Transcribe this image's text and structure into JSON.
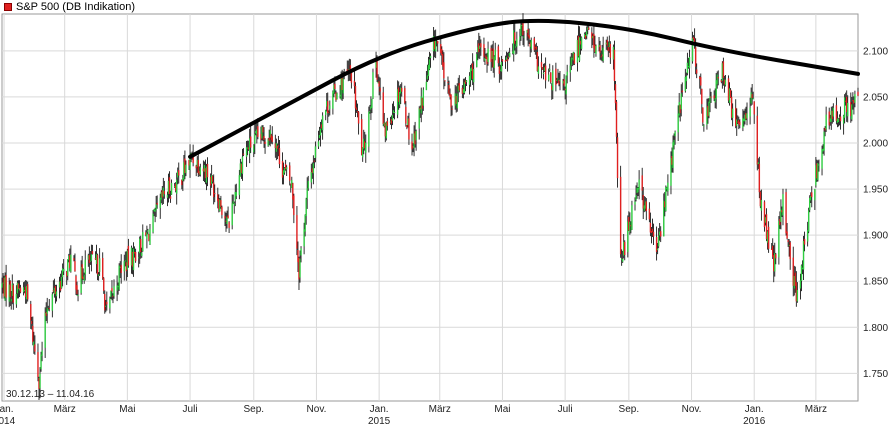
{
  "chart_data": {
    "type": "candlestick",
    "title": "S&P 500 (DB Indikation)",
    "legend_color": "#e02020",
    "range_label": "30.12.13 – 11.04.16",
    "colors": {
      "up": "#2ecc40",
      "down": "#e02020",
      "wick": "#1a1a1a",
      "grid": "#d9d9d9",
      "trend": "#000000"
    },
    "y_ticks": [
      "1.750",
      "1.800",
      "1.850",
      "1.900",
      "1.950",
      "2.000",
      "2.050",
      "2.100"
    ],
    "ylim": [
      1720,
      2140
    ],
    "x_ticks": [
      {
        "date": "2014-01-01",
        "label": "Jan.",
        "year": "2014"
      },
      {
        "date": "2014-03-01",
        "label": "März",
        "year": ""
      },
      {
        "date": "2014-05-01",
        "label": "Mai",
        "year": ""
      },
      {
        "date": "2014-07-01",
        "label": "Juli",
        "year": ""
      },
      {
        "date": "2014-09-01",
        "label": "Sep.",
        "year": ""
      },
      {
        "date": "2014-11-01",
        "label": "Nov.",
        "year": ""
      },
      {
        "date": "2015-01-01",
        "label": "Jan.",
        "year": "2015"
      },
      {
        "date": "2015-03-01",
        "label": "März",
        "year": ""
      },
      {
        "date": "2015-05-01",
        "label": "Mai",
        "year": ""
      },
      {
        "date": "2015-07-01",
        "label": "Juli",
        "year": ""
      },
      {
        "date": "2015-09-01",
        "label": "Sep.",
        "year": ""
      },
      {
        "date": "2015-11-01",
        "label": "Nov.",
        "year": ""
      },
      {
        "date": "2016-01-01",
        "label": "Jan.",
        "year": "2016"
      },
      {
        "date": "2016-03-01",
        "label": "März",
        "year": ""
      }
    ],
    "xlim": [
      "2013-12-30",
      "2016-04-11"
    ],
    "close_series": [
      [
        "2013-12-30",
        1845
      ],
      [
        "2014-01-10",
        1838
      ],
      [
        "2014-01-22",
        1842
      ],
      [
        "2014-02-04",
        1745
      ],
      [
        "2014-02-12",
        1825
      ],
      [
        "2014-02-26",
        1852
      ],
      [
        "2014-03-07",
        1875
      ],
      [
        "2014-03-14",
        1842
      ],
      [
        "2014-03-21",
        1870
      ],
      [
        "2014-04-04",
        1868
      ],
      [
        "2014-04-11",
        1815
      ],
      [
        "2014-04-25",
        1865
      ],
      [
        "2014-05-09",
        1880
      ],
      [
        "2014-05-23",
        1905
      ],
      [
        "2014-06-06",
        1945
      ],
      [
        "2014-06-20",
        1960
      ],
      [
        "2014-07-03",
        1985
      ],
      [
        "2014-07-17",
        1970
      ],
      [
        "2014-07-31",
        1935
      ],
      [
        "2014-08-07",
        1910
      ],
      [
        "2014-08-22",
        1990
      ],
      [
        "2014-09-05",
        2005
      ],
      [
        "2014-09-19",
        2012
      ],
      [
        "2014-09-30",
        1970
      ],
      [
        "2014-10-08",
        1955
      ],
      [
        "2014-10-15",
        1862
      ],
      [
        "2014-10-23",
        1945
      ],
      [
        "2014-11-07",
        2032
      ],
      [
        "2014-11-28",
        2070
      ],
      [
        "2014-12-05",
        2075
      ],
      [
        "2014-12-16",
        1985
      ],
      [
        "2014-12-29",
        2090
      ],
      [
        "2015-01-06",
        2010
      ],
      [
        "2015-01-22",
        2062
      ],
      [
        "2015-02-02",
        1995
      ],
      [
        "2015-02-25",
        2115
      ],
      [
        "2015-03-11",
        2045
      ],
      [
        "2015-03-25",
        2060
      ],
      [
        "2015-04-10",
        2100
      ],
      [
        "2015-04-30",
        2085
      ],
      [
        "2015-05-20",
        2128
      ],
      [
        "2015-06-09",
        2075
      ],
      [
        "2015-06-29",
        2058
      ],
      [
        "2015-07-20",
        2125
      ],
      [
        "2015-08-05",
        2095
      ],
      [
        "2015-08-17",
        2100
      ],
      [
        "2015-08-24",
        1868
      ],
      [
        "2015-09-10",
        1960
      ],
      [
        "2015-09-28",
        1880
      ],
      [
        "2015-10-22",
        2050
      ],
      [
        "2015-11-03",
        2110
      ],
      [
        "2015-11-13",
        2025
      ],
      [
        "2015-12-02",
        2080
      ],
      [
        "2015-12-14",
        2015
      ],
      [
        "2015-12-30",
        2050
      ],
      [
        "2016-01-08",
        1930
      ],
      [
        "2016-01-20",
        1865
      ],
      [
        "2016-01-29",
        1935
      ],
      [
        "2016-02-11",
        1830
      ],
      [
        "2016-02-26",
        1945
      ],
      [
        "2016-03-11",
        2020
      ],
      [
        "2016-03-24",
        2035
      ],
      [
        "2016-04-11",
        2045
      ]
    ],
    "trendline": [
      [
        "2014-07-01",
        1985
      ],
      [
        "2014-10-01",
        2040
      ],
      [
        "2015-01-01",
        2095
      ],
      [
        "2015-04-01",
        2125
      ],
      [
        "2015-06-01",
        2135
      ],
      [
        "2015-09-01",
        2125
      ],
      [
        "2015-12-01",
        2100
      ],
      [
        "2016-04-11",
        2075
      ]
    ],
    "grid": true
  }
}
